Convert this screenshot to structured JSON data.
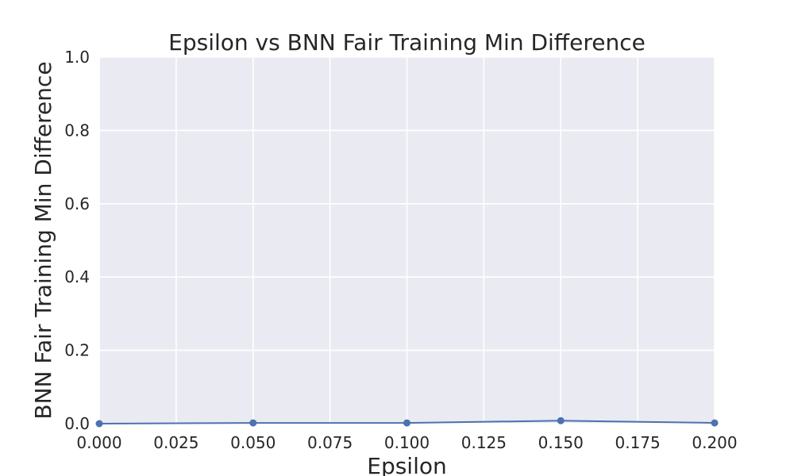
{
  "chart_data": {
    "type": "line",
    "title": "Epsilon vs BNN Fair Training Min Difference",
    "xlabel": "Epsilon",
    "ylabel": "BNN Fair Training Min Difference",
    "xlim": [
      0.0,
      0.2
    ],
    "ylim": [
      0.0,
      1.0
    ],
    "xticks": [
      "0.000",
      "0.025",
      "0.050",
      "0.075",
      "0.100",
      "0.125",
      "0.150",
      "0.175",
      "0.200"
    ],
    "yticks": [
      "0.0",
      "0.2",
      "0.4",
      "0.6",
      "0.8",
      "1.0"
    ],
    "grid": true,
    "series": [
      {
        "x": [
          0.0,
          0.05,
          0.1,
          0.15,
          0.2
        ],
        "y": [
          0.0,
          0.002,
          0.002,
          0.008,
          0.002
        ]
      }
    ],
    "colors": {
      "line": "#4c72b0",
      "plot_background": "#eaeaf2",
      "grid": "#ffffff",
      "text": "#262626"
    }
  }
}
